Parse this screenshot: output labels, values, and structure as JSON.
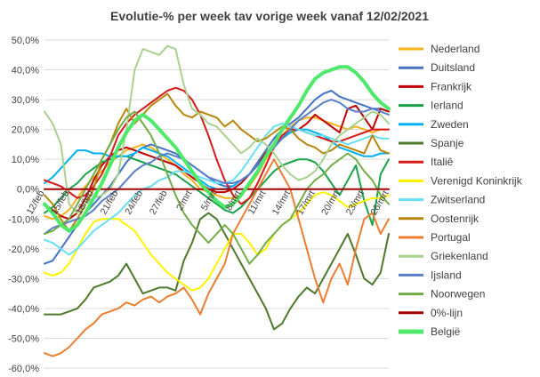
{
  "chart_data": {
    "type": "line",
    "title": "Evolutie-% per week tav vorige week vanaf 12/02/2021",
    "xlabel": "",
    "ylabel": "",
    "ylim": [
      -60,
      50
    ],
    "y_ticks": [
      "50,0%",
      "40,0%",
      "30,0%",
      "20,0%",
      "10,0%",
      "0,0%",
      "-10,0%",
      "-20,0%",
      "-30,0%",
      "-40,0%",
      "-50,0%",
      "-60,0%"
    ],
    "x_tick_labels": [
      "12/feb",
      "15/feb",
      "18/feb",
      "21/feb",
      "24/feb",
      "27/feb",
      "2/mrt",
      "5/mrt",
      "8/mrt",
      "11/mrt",
      "14/mrt",
      "17/mrt",
      "20/mrt",
      "23/mrt",
      "26/mrt"
    ],
    "x_tick_index": [
      0,
      3,
      6,
      9,
      12,
      15,
      18,
      21,
      24,
      27,
      30,
      33,
      36,
      39,
      42
    ],
    "grid": true,
    "legend_position": "right",
    "series": [
      {
        "name": "Nederland",
        "color": "#f7b21e",
        "width": 2,
        "values": [
          -9,
          -10,
          -9,
          -7,
          -3,
          1,
          4,
          6,
          9,
          11,
          13,
          14,
          15,
          14,
          12,
          10,
          8,
          5,
          3,
          0,
          -1,
          -2,
          -3,
          -3,
          -2,
          1,
          5,
          10,
          14,
          18,
          21,
          23,
          24,
          24,
          23,
          22,
          21,
          20,
          21,
          20,
          19,
          20,
          20
        ]
      },
      {
        "name": "Duitsland",
        "color": "#4472c4",
        "width": 2,
        "values": [
          -25,
          -24,
          -20,
          -16,
          -12,
          -8,
          -5,
          -2,
          1,
          5,
          9,
          12,
          14,
          15,
          14,
          13,
          12,
          10,
          8,
          6,
          4,
          2,
          1,
          1,
          3,
          5,
          9,
          13,
          17,
          20,
          22,
          24,
          27,
          30,
          32,
          33,
          31,
          30,
          29,
          28,
          27,
          27,
          26
        ]
      },
      {
        "name": "Frankrijk",
        "color": "#c00000",
        "width": 2,
        "values": [
          -5,
          -7,
          -9,
          -10,
          -8,
          -3,
          3,
          8,
          11,
          13,
          14,
          13,
          12,
          11,
          10,
          9,
          8,
          6,
          4,
          2,
          0,
          -1,
          -1,
          0,
          2,
          5,
          8,
          12,
          15,
          17,
          19,
          20,
          22,
          25,
          23,
          21,
          19,
          27,
          28,
          24,
          20,
          27,
          26
        ]
      },
      {
        "name": "Ierland",
        "color": "#1aa34a",
        "width": 2,
        "values": [
          -8,
          -6,
          -3,
          0,
          2,
          5,
          7,
          9,
          10,
          11,
          11,
          10,
          9,
          8,
          7,
          6,
          5,
          3,
          1,
          -1,
          -3,
          -5,
          -7,
          -8,
          -6,
          -3,
          0,
          3,
          6,
          8,
          9,
          10,
          10,
          9,
          6,
          2,
          -2,
          3,
          8,
          -4,
          -12,
          5,
          10
        ]
      },
      {
        "name": "Zweden",
        "color": "#00b0f0",
        "width": 2,
        "values": [
          2,
          4,
          7,
          10,
          13,
          13,
          12,
          12,
          11,
          11,
          11,
          12,
          14,
          13,
          12,
          11,
          9,
          7,
          5,
          3,
          1,
          0,
          0,
          1,
          3,
          5,
          8,
          11,
          14,
          17,
          19,
          20,
          20,
          19,
          18,
          16,
          14,
          13,
          12,
          11,
          11,
          12,
          12
        ]
      },
      {
        "name": "Spanje",
        "color": "#4c7a2a",
        "width": 2,
        "values": [
          -42,
          -42,
          -42,
          -41,
          -40,
          -37,
          -33,
          -32,
          -31,
          -29,
          -25,
          -30,
          -35,
          -34,
          -33,
          -33,
          -34,
          -24,
          -18,
          -10,
          -8,
          -10,
          -15,
          -20,
          -25,
          -30,
          -35,
          -40,
          -47,
          -45,
          -40,
          -36,
          -33,
          -35,
          -30,
          -25,
          -20,
          -15,
          -22,
          -30,
          -32,
          -28,
          -15
        ]
      },
      {
        "name": "Italiê",
        "color": "#d61a1a",
        "width": 2,
        "values": [
          3,
          2,
          1,
          -1,
          -3,
          -2,
          1,
          5,
          11,
          18,
          22,
          25,
          27,
          29,
          31,
          33,
          34,
          33,
          30,
          25,
          18,
          10,
          3,
          -2,
          -5,
          -3,
          2,
          8,
          14,
          18,
          20,
          20,
          19,
          18,
          17,
          16,
          16,
          17,
          18,
          19,
          20,
          20,
          20
        ]
      },
      {
        "name": "Verenigd Koninkrijk",
        "color": "#fff200",
        "width": 2,
        "values": [
          -28,
          -29,
          -28,
          -25,
          -20,
          -15,
          -11,
          -10,
          -10,
          -10,
          -12,
          -14,
          -18,
          -22,
          -25,
          -28,
          -30,
          -32,
          -34,
          -33,
          -30,
          -25,
          -20,
          -15,
          -15,
          -18,
          -22,
          -20,
          -15,
          -12,
          -10,
          -8,
          -5,
          -2,
          -1,
          -2,
          -4,
          -6,
          -5,
          -4,
          -3,
          -3,
          -2
        ]
      },
      {
        "name": "Zwitserland",
        "color": "#66e0f2",
        "width": 2,
        "values": [
          -17,
          -18,
          -20,
          -22,
          -20,
          -17,
          -14,
          -12,
          -10,
          -8,
          -5,
          -2,
          0,
          1,
          3,
          4,
          6,
          6,
          5,
          4,
          3,
          2,
          2,
          3,
          6,
          10,
          14,
          18,
          21,
          22,
          21,
          20,
          19,
          18,
          18,
          17,
          16,
          15,
          16,
          17,
          18,
          17,
          17
        ]
      },
      {
        "name": "Oostenrijk",
        "color": "#b8860b",
        "width": 2,
        "values": [
          -2,
          -5,
          -10,
          -14,
          -10,
          -5,
          0,
          10,
          15,
          22,
          27,
          22,
          25,
          28,
          30,
          32,
          28,
          25,
          24,
          26,
          25,
          24,
          21,
          23,
          20,
          18,
          16,
          17,
          19,
          21,
          20,
          17,
          15,
          14,
          12,
          13,
          15,
          14,
          13,
          12,
          18,
          13,
          12
        ]
      },
      {
        "name": "Portugal",
        "color": "#ed7d31",
        "width": 2,
        "values": [
          -55,
          -56,
          -55,
          -53,
          -50,
          -47,
          -45,
          -42,
          -41,
          -40,
          -38,
          -39,
          -37,
          -36,
          -38,
          -36,
          -35,
          -33,
          -37,
          -42,
          -35,
          -30,
          -25,
          -15,
          -10,
          -5,
          0,
          5,
          10,
          5,
          0,
          -10,
          -20,
          -30,
          -38,
          -30,
          -25,
          -32,
          -20,
          -10,
          -8,
          -15,
          -10
        ]
      },
      {
        "name": "Griekenland",
        "color": "#a9d18e",
        "width": 2,
        "values": [
          26,
          22,
          15,
          -5,
          -8,
          -5,
          -3,
          -2,
          0,
          5,
          20,
          40,
          47,
          46,
          45,
          48,
          47,
          35,
          27,
          25,
          22,
          21,
          18,
          15,
          12,
          14,
          17,
          15,
          12,
          8,
          5,
          3,
          4,
          6,
          10,
          15,
          18,
          20,
          22,
          24,
          26,
          25,
          22
        ]
      },
      {
        "name": "Ijsland",
        "color": "#5b7fc7",
        "width": 2,
        "values": [
          -15,
          -13,
          -12,
          -11,
          -10,
          -9,
          -7,
          -4,
          -2,
          0,
          3,
          6,
          8,
          9,
          11,
          12,
          11,
          10,
          8,
          6,
          4,
          3,
          2,
          2,
          3,
          5,
          8,
          11,
          14,
          17,
          20,
          23,
          25,
          27,
          29,
          30,
          29,
          27,
          26,
          26,
          27,
          26,
          25
        ]
      },
      {
        "name": "Noorwegen",
        "color": "#70ad47",
        "width": 2,
        "values": [
          -15,
          -14,
          -12,
          -10,
          -5,
          0,
          5,
          10,
          15,
          20,
          24,
          26,
          22,
          18,
          12,
          5,
          -2,
          -8,
          -12,
          -15,
          -18,
          -15,
          -12,
          -15,
          -20,
          -25,
          -22,
          -18,
          -15,
          -12,
          -10,
          -5,
          0,
          3,
          5,
          8,
          10,
          12,
          10,
          6,
          3,
          -2,
          -5
        ]
      },
      {
        "name": "0%-lijn",
        "color": "#a00000",
        "width": 2,
        "values": [
          0,
          0,
          0,
          0,
          0,
          0,
          0,
          0,
          0,
          0,
          0,
          0,
          0,
          0,
          0,
          0,
          0,
          0,
          0,
          0,
          0,
          0,
          0,
          0,
          0,
          0,
          0,
          0,
          0,
          0,
          0,
          0,
          0,
          0,
          0,
          0,
          0,
          0,
          0,
          0,
          0,
          0,
          0
        ]
      },
      {
        "name": "België",
        "color": "#4ee86a",
        "width": 4,
        "values": [
          -5,
          -8,
          -12,
          -14,
          -12,
          -8,
          -3,
          2,
          8,
          14,
          19,
          23,
          25,
          23,
          20,
          17,
          14,
          10,
          6,
          2,
          -1,
          -4,
          -6,
          -5,
          -2,
          2,
          6,
          11,
          15,
          20,
          24,
          28,
          33,
          37,
          39,
          40,
          41,
          41,
          39,
          36,
          32,
          29,
          27
        ]
      }
    ]
  }
}
